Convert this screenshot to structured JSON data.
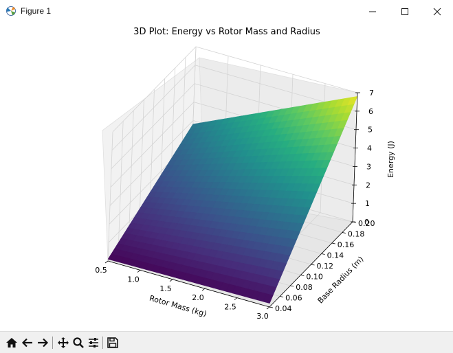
{
  "window": {
    "title": "Figure 1",
    "controls": [
      "minimize",
      "maximize",
      "close"
    ]
  },
  "chart_data": {
    "type": "surface",
    "title": "3D Plot: Energy vs Rotor Mass and Radius",
    "xlabel": "Rotor Mass (kg)",
    "ylabel": "Base Radius (m)",
    "zlabel": "Energy (J)",
    "xlim": [
      0.5,
      3.0
    ],
    "ylim": [
      0.04,
      0.2
    ],
    "zlim": [
      0,
      7
    ],
    "xticks": [
      "0.5",
      "1.0",
      "1.5",
      "2.0",
      "2.5",
      "3.0"
    ],
    "yticks": [
      "0.04",
      "0.06",
      "0.08",
      "0.10",
      "0.12",
      "0.14",
      "0.16",
      "0.18",
      "0.20"
    ],
    "zticks": [
      "0",
      "1",
      "2",
      "3",
      "4",
      "5",
      "6",
      "7"
    ],
    "colormap": "viridis",
    "grid": true,
    "corner_values": [
      {
        "x": 0.5,
        "y": 0.04,
        "z": 0.1
      },
      {
        "x": 3.0,
        "y": 0.04,
        "z": 0.2
      },
      {
        "x": 0.5,
        "y": 0.2,
        "z": 2.8
      },
      {
        "x": 3.0,
        "y": 0.2,
        "z": 6.8
      }
    ]
  },
  "toolbar": {
    "buttons": [
      "home-icon",
      "back-icon",
      "forward-icon",
      "pan-icon",
      "zoom-icon",
      "configure-subplots-icon",
      "save-icon"
    ]
  }
}
